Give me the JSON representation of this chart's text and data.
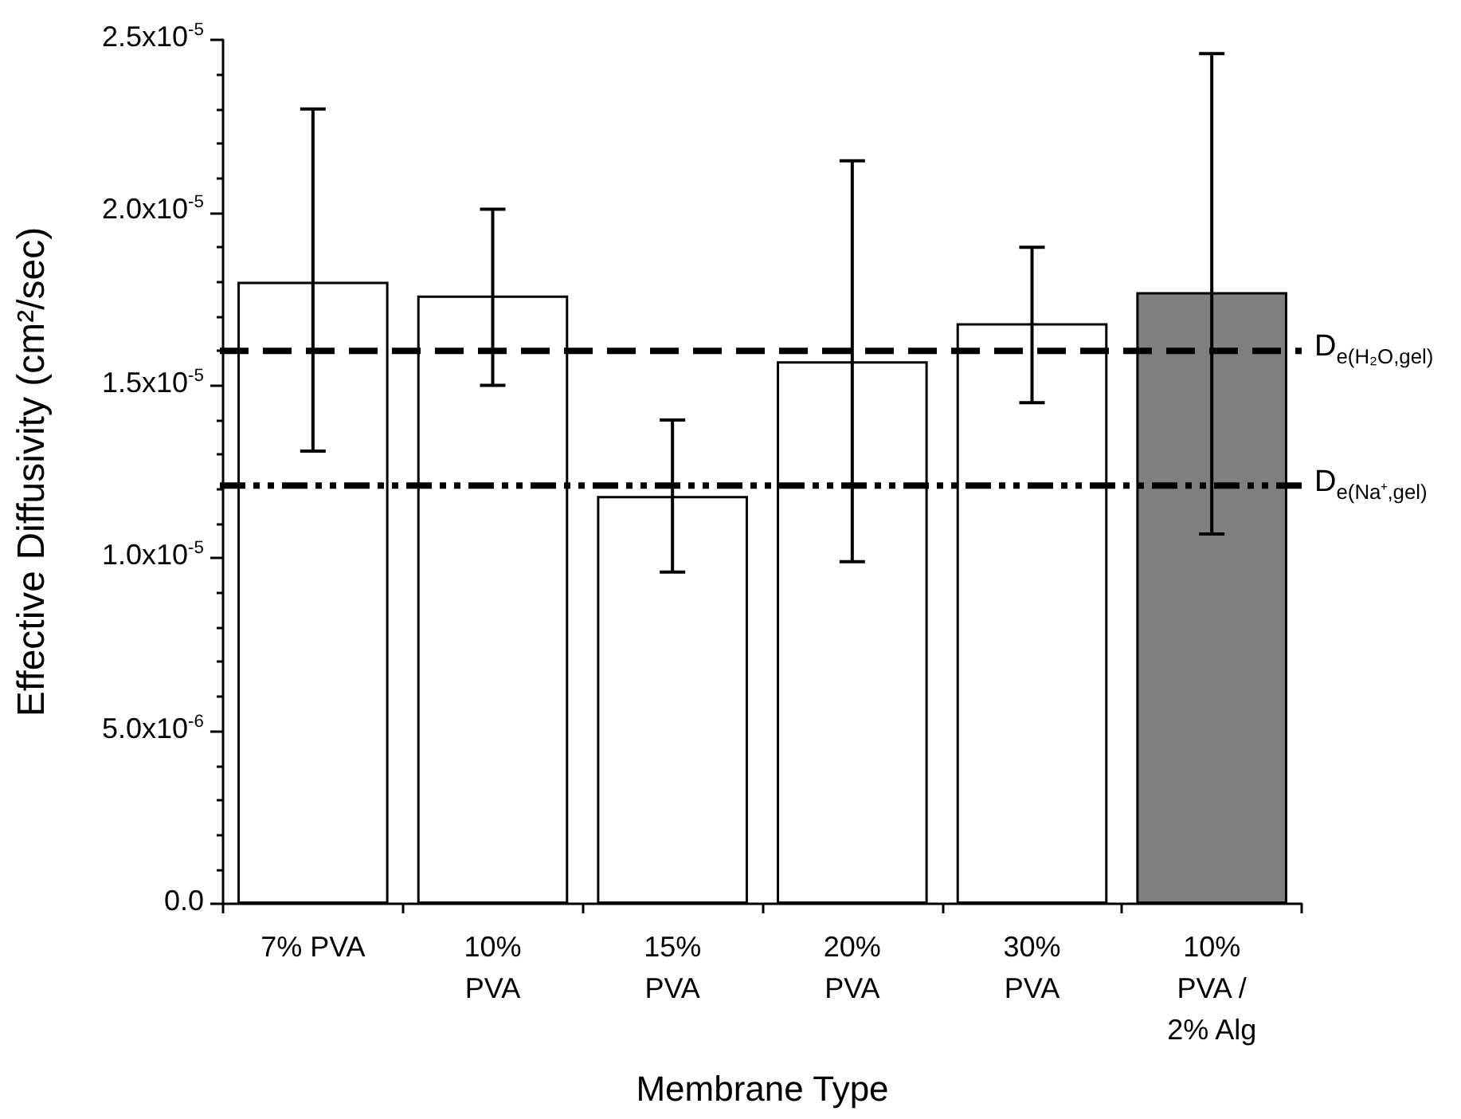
{
  "chart_data": {
    "type": "bar",
    "xlabel": "Membrane Type",
    "ylabel": "Effective Diffusivity (cm²/sec)",
    "categories": [
      "7% PVA",
      "10%\nPVA",
      "15%\nPVA",
      "20%\nPVA",
      "30%\nPVA",
      "10%\nPVA /\n2% Alg"
    ],
    "values": [
      1.8e-05,
      1.76e-05,
      1.18e-05,
      1.57e-05,
      1.68e-05,
      1.77e-05
    ],
    "colors": [
      "#ffffff",
      "#ffffff",
      "#ffffff",
      "#ffffff",
      "#ffffff",
      "#808080"
    ],
    "errors": [
      [
        1.31e-05,
        2.3e-05
      ],
      [
        1.5e-05,
        2.01e-05
      ],
      [
        9.6e-06,
        1.4e-05
      ],
      [
        9.9e-06,
        2.15e-05
      ],
      [
        1.45e-05,
        1.9e-05
      ],
      [
        1.07e-05,
        2.46e-05
      ]
    ],
    "ylim": [
      0,
      2.5e-05
    ],
    "yticks": [
      {
        "value": 0,
        "label": "0.0"
      },
      {
        "value": 5e-06,
        "label": "5.0x10$^{-6}$"
      },
      {
        "value": 1e-05,
        "label": "1.0x10$^{-5}$"
      },
      {
        "value": 1.5e-05,
        "label": "1.5x10$^{-5}$"
      },
      {
        "value": 2e-05,
        "label": "2.0x10$^{-5}$"
      },
      {
        "value": 2.5e-05,
        "label": "2.5x10$^{-5}$"
      }
    ],
    "ref_lines": [
      {
        "axis": "y",
        "value": 1.6e-05,
        "label": "D$_{e(H₂O,gel)}$",
        "line_style": "dashed",
        "color": "#000000"
      },
      {
        "axis": "y",
        "value": 1.21e-05,
        "label": "D$_{e(Na⁺,gel)}$",
        "line_style": "dotted",
        "color": "#000000"
      }
    ],
    "grid": false
  }
}
